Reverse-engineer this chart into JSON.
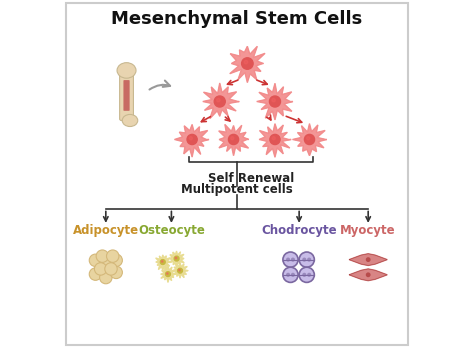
{
  "title": "Mesenchymal Stem Cells",
  "title_fontsize": 13,
  "title_fontweight": "bold",
  "bg_color": "#ffffff",
  "border_color": "#cccccc",
  "self_renewal_label": "Self Renewal",
  "multipotent_label": "Multipotent cells",
  "cell_types": [
    "Adipocyte",
    "Osteocyte",
    "Chodrocyte",
    "Myocyte"
  ],
  "cell_colors": [
    "#c8922a",
    "#88a832",
    "#6a55a0",
    "#cc6666"
  ],
  "stem_cell_color": "#f28b8b",
  "stem_cell_nucleus_color": "#e05555",
  "arrow_color": "#cc3333",
  "connector_color": "#333333",
  "label_fontsize": 9,
  "adipocyte_color": "#d4b87a",
  "adipocyte_inner": "#e8d4a0",
  "osteocyte_color": "#e8dc90",
  "osteocyte_nucleus": "#c8b840",
  "chondrocyte_outer": "#7b68a0",
  "chondrocyte_inner": "#c8bce8",
  "myocyte_color": "#d47878",
  "myocyte_outline": "#aa4444",
  "bone_color": "#e8d4b0",
  "bone_edge": "#c8b890",
  "bone_marrow": "#c05050"
}
